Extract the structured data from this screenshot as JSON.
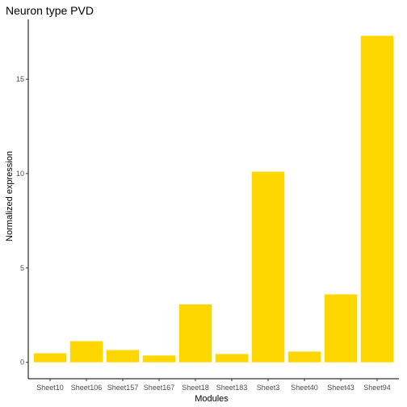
{
  "chart_data": {
    "type": "bar",
    "title": "Neuron type PVD",
    "xlabel": "Modules",
    "ylabel": "Normalized expression",
    "categories": [
      "Sheet10",
      "Sheet106",
      "Sheet157",
      "Sheet167",
      "Sheet18",
      "Sheet183",
      "Sheet3",
      "Sheet40",
      "Sheet43",
      "Sheet94"
    ],
    "values": [
      0.48,
      1.12,
      0.65,
      0.36,
      3.07,
      0.44,
      10.1,
      0.57,
      3.6,
      17.3
    ],
    "ylim": [
      -0.87,
      18.17
    ],
    "yticks": [
      0,
      5,
      10,
      15
    ],
    "ytick_labels": [
      "0",
      "5",
      "10",
      "15"
    ],
    "grid": false,
    "bar_color": "#FFD700"
  }
}
